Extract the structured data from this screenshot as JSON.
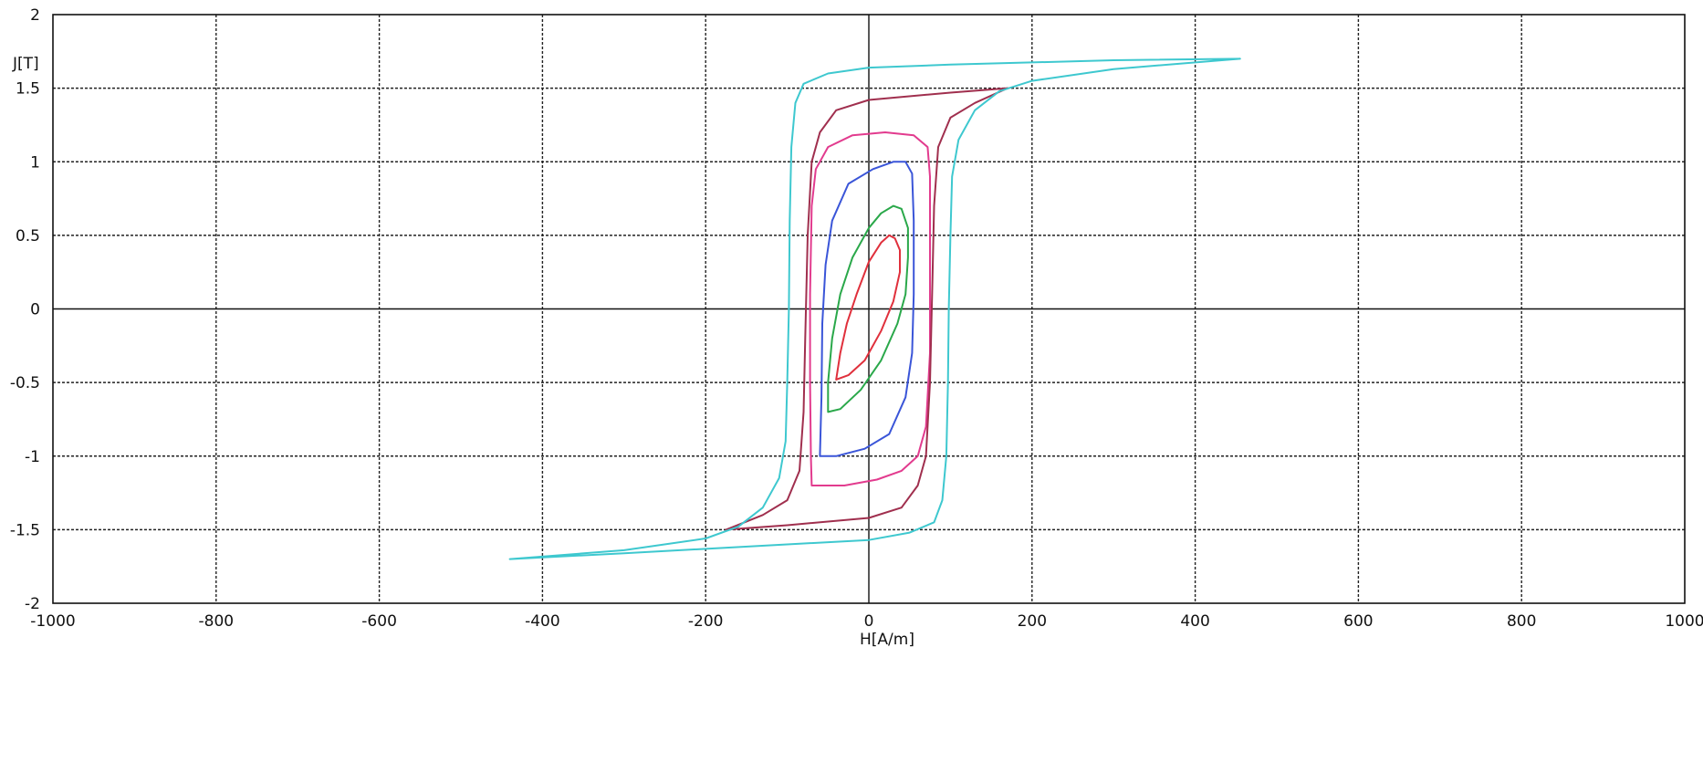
{
  "chart_data": {
    "type": "line",
    "xlabel": "H[A/m]",
    "ylabel": "J[T]",
    "xlim": [
      -1000,
      1000
    ],
    "ylim": [
      -2,
      2
    ],
    "x_ticks": [
      -1000,
      -800,
      -600,
      -400,
      -200,
      0,
      200,
      400,
      600,
      800,
      1000
    ],
    "y_ticks": [
      2,
      1.5,
      1,
      0.5,
      0,
      -0.5,
      -1,
      -1.5,
      -2
    ],
    "grid": true,
    "legend": "none",
    "series": [
      {
        "color": "#e0303c",
        "points": [
          [
            -40,
            -0.48
          ],
          [
            -25,
            -0.45
          ],
          [
            -5,
            -0.35
          ],
          [
            15,
            -0.15
          ],
          [
            30,
            0.05
          ],
          [
            38,
            0.25
          ],
          [
            38,
            0.4
          ],
          [
            32,
            0.48
          ],
          [
            25,
            0.5
          ],
          [
            15,
            0.45
          ],
          [
            0,
            0.32
          ],
          [
            -15,
            0.1
          ],
          [
            -27,
            -0.1
          ],
          [
            -35,
            -0.3
          ],
          [
            -40,
            -0.48
          ]
        ]
      },
      {
        "color": "#2aa84a",
        "points": [
          [
            -50,
            -0.7
          ],
          [
            -35,
            -0.68
          ],
          [
            -10,
            -0.55
          ],
          [
            15,
            -0.35
          ],
          [
            35,
            -0.1
          ],
          [
            45,
            0.1
          ],
          [
            48,
            0.35
          ],
          [
            48,
            0.55
          ],
          [
            40,
            0.68
          ],
          [
            30,
            0.7
          ],
          [
            15,
            0.65
          ],
          [
            0,
            0.55
          ],
          [
            -20,
            0.35
          ],
          [
            -35,
            0.1
          ],
          [
            -45,
            -0.2
          ],
          [
            -50,
            -0.5
          ],
          [
            -50,
            -0.7
          ]
        ]
      },
      {
        "color": "#3a55d8",
        "points": [
          [
            -60,
            -1
          ],
          [
            -40,
            -1
          ],
          [
            -5,
            -0.95
          ],
          [
            25,
            -0.85
          ],
          [
            45,
            -0.6
          ],
          [
            53,
            -0.3
          ],
          [
            55,
            0.1
          ],
          [
            55,
            0.6
          ],
          [
            53,
            0.92
          ],
          [
            45,
            1
          ],
          [
            30,
            1
          ],
          [
            5,
            0.95
          ],
          [
            -25,
            0.85
          ],
          [
            -45,
            0.6
          ],
          [
            -53,
            0.3
          ],
          [
            -57,
            -0.1
          ],
          [
            -58,
            -0.6
          ],
          [
            -60,
            -1
          ]
        ]
      },
      {
        "color": "#e23b8e",
        "points": [
          [
            -70,
            -1.2
          ],
          [
            -30,
            -1.2
          ],
          [
            10,
            -1.16
          ],
          [
            40,
            -1.1
          ],
          [
            60,
            -1
          ],
          [
            70,
            -0.8
          ],
          [
            75,
            -0.3
          ],
          [
            75,
            0.4
          ],
          [
            75,
            0.9
          ],
          [
            72,
            1.1
          ],
          [
            55,
            1.18
          ],
          [
            20,
            1.2
          ],
          [
            -20,
            1.18
          ],
          [
            -50,
            1.1
          ],
          [
            -65,
            0.95
          ],
          [
            -70,
            0.7
          ],
          [
            -72,
            0.1
          ],
          [
            -72,
            -0.5
          ],
          [
            -71,
            -1
          ],
          [
            -70,
            -1.2
          ]
        ]
      },
      {
        "color": "#a02f4e",
        "points": [
          [
            -175,
            -1.5
          ],
          [
            -100,
            -1.47
          ],
          [
            0,
            -1.42
          ],
          [
            40,
            -1.35
          ],
          [
            60,
            -1.2
          ],
          [
            70,
            -1
          ],
          [
            75,
            -0.5
          ],
          [
            78,
            0.2
          ],
          [
            80,
            0.7
          ],
          [
            85,
            1.1
          ],
          [
            100,
            1.3
          ],
          [
            130,
            1.4
          ],
          [
            170,
            1.5
          ],
          [
            100,
            1.47
          ],
          [
            0,
            1.42
          ],
          [
            -40,
            1.35
          ],
          [
            -60,
            1.2
          ],
          [
            -70,
            1
          ],
          [
            -75,
            0.5
          ],
          [
            -78,
            -0.2
          ],
          [
            -80,
            -0.7
          ],
          [
            -85,
            -1.1
          ],
          [
            -100,
            -1.3
          ],
          [
            -130,
            -1.4
          ],
          [
            -175,
            -1.5
          ]
        ]
      },
      {
        "color": "#3ec8cf",
        "points": [
          [
            -440,
            -1.7
          ],
          [
            -300,
            -1.66
          ],
          [
            -100,
            -1.6
          ],
          [
            0,
            -1.57
          ],
          [
            50,
            -1.52
          ],
          [
            80,
            -1.45
          ],
          [
            90,
            -1.3
          ],
          [
            95,
            -1
          ],
          [
            97,
            -0.5
          ],
          [
            98,
            0
          ],
          [
            100,
            0.5
          ],
          [
            102,
            0.9
          ],
          [
            110,
            1.15
          ],
          [
            130,
            1.35
          ],
          [
            160,
            1.48
          ],
          [
            200,
            1.55
          ],
          [
            300,
            1.63
          ],
          [
            455,
            1.7
          ],
          [
            300,
            1.69
          ],
          [
            100,
            1.66
          ],
          [
            0,
            1.64
          ],
          [
            -50,
            1.6
          ],
          [
            -80,
            1.53
          ],
          [
            -90,
            1.4
          ],
          [
            -95,
            1.1
          ],
          [
            -97,
            0.6
          ],
          [
            -98,
            0
          ],
          [
            -100,
            -0.5
          ],
          [
            -102,
            -0.9
          ],
          [
            -110,
            -1.15
          ],
          [
            -130,
            -1.35
          ],
          [
            -160,
            -1.48
          ],
          [
            -200,
            -1.56
          ],
          [
            -300,
            -1.64
          ],
          [
            -440,
            -1.7
          ]
        ]
      }
    ]
  }
}
